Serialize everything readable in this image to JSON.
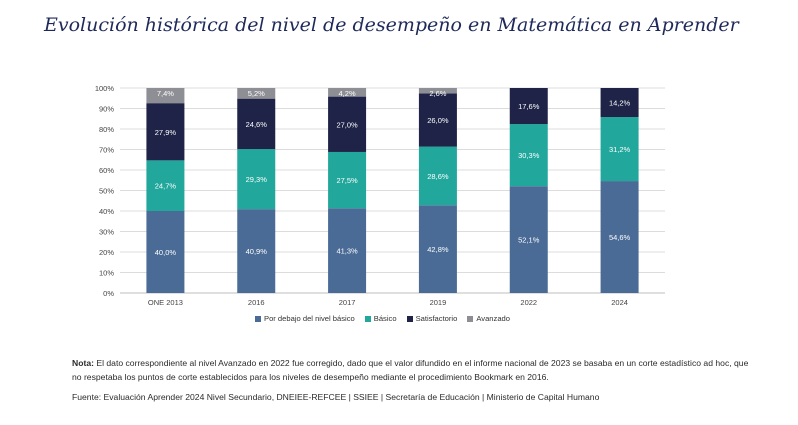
{
  "title": "Evolución histórica del nivel de desempeño en Matemática en Aprender",
  "note": {
    "label": "Nota:",
    "text": "El dato correspondiente al nivel Avanzado en 2022 fue corregido, dado que el valor difundido en el informe nacional de 2023 se basaba en un corte estadístico ad hoc, que no respetaba los puntos de corte establecidos para los niveles de desempeño mediante el procedimiento Bookmark en 2016."
  },
  "source": "Fuente: Evaluación Aprender 2024 Nivel Secundario, DNEIEE-REFCEE | SSIEE | Secretaría de Educación | Ministerio de Capital Humano",
  "chart_data": {
    "type": "bar",
    "stacked": true,
    "categories": [
      "ONE 2013",
      "2016",
      "2017",
      "2019",
      "2022",
      "2024"
    ],
    "series": [
      {
        "name": "Por debajo del nivel básico",
        "color": "#4a6b96",
        "values": [
          40.0,
          40.9,
          41.3,
          42.8,
          52.1,
          54.6
        ],
        "labels": [
          "40,0%",
          "40,9%",
          "41,3%",
          "42,8%",
          "52,1%",
          "54,6%"
        ]
      },
      {
        "name": "Básico",
        "color": "#21a79b",
        "values": [
          24.7,
          29.3,
          27.5,
          28.6,
          30.3,
          31.2
        ],
        "labels": [
          "24,7%",
          "29,3%",
          "27,5%",
          "28,6%",
          "30,3%",
          "31,2%"
        ]
      },
      {
        "name": "Satisfactorio",
        "color": "#1e2347",
        "values": [
          27.9,
          24.6,
          27.0,
          26.0,
          17.6,
          14.2
        ],
        "labels": [
          "27,9%",
          "24,6%",
          "27,0%",
          "26,0%",
          "17,6%",
          "14,2%"
        ]
      },
      {
        "name": "Avanzado",
        "color": "#8e8e95",
        "values": [
          7.4,
          5.2,
          4.2,
          2.6,
          null,
          null
        ],
        "labels": [
          "7,4%",
          "5,2%",
          "4,2%",
          "2,6%",
          "",
          ""
        ]
      }
    ],
    "yticks": [
      "0%",
      "10%",
      "20%",
      "30%",
      "40%",
      "50%",
      "60%",
      "70%",
      "80%",
      "90%",
      "100%"
    ],
    "ylim": [
      0,
      100
    ],
    "grid": true,
    "legend_position": "bottom"
  }
}
